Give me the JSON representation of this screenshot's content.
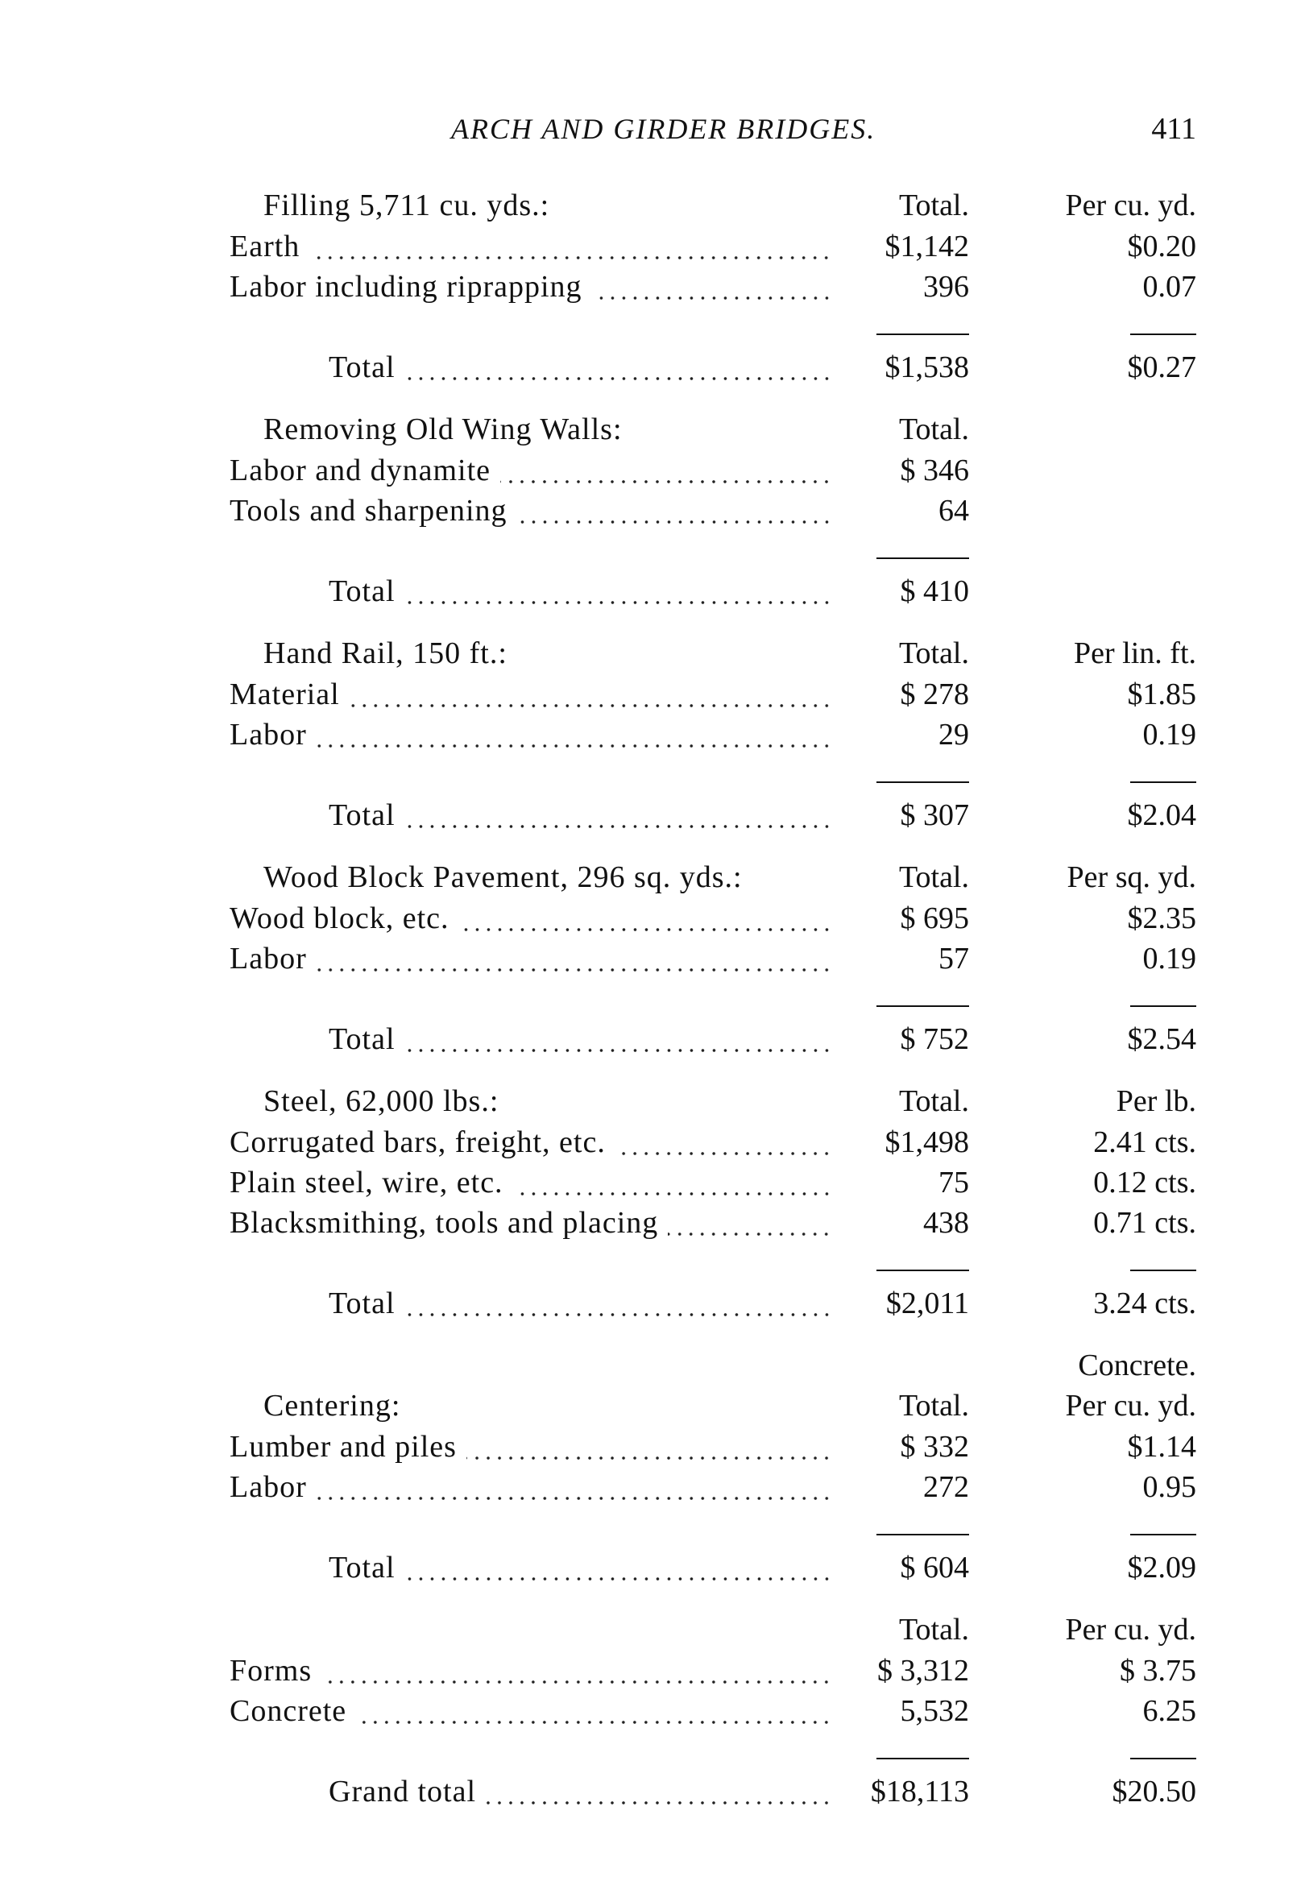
{
  "header": {
    "title": "ARCH AND GIRDER BRIDGES.",
    "page_number": "411"
  },
  "sections": [
    {
      "heading": "Filling 5,711 cu. yds.:",
      "columns": [
        "Total.",
        "Per cu. yd."
      ],
      "rows": [
        [
          "Earth",
          "$1,142",
          "$0.20"
        ],
        [
          "Labor including riprapping",
          "396",
          "0.07"
        ]
      ],
      "total": [
        "Total",
        "$1,538",
        "$0.27"
      ]
    },
    {
      "heading": "Removing Old Wing Walls:",
      "columns": [
        "Total."
      ],
      "rows": [
        [
          "Labor and dynamite",
          "$ 346"
        ],
        [
          "Tools and sharpening",
          "64"
        ]
      ],
      "total": [
        "Total",
        "$ 410"
      ]
    },
    {
      "heading": "Hand Rail, 150 ft.:",
      "columns": [
        "Total.",
        "Per lin. ft."
      ],
      "rows": [
        [
          "Material",
          "$ 278",
          "$1.85"
        ],
        [
          "Labor",
          "29",
          "0.19"
        ]
      ],
      "total": [
        "Total",
        "$ 307",
        "$2.04"
      ]
    },
    {
      "heading": "Wood Block Pavement, 296 sq. yds.:",
      "columns": [
        "Total.",
        "Per sq. yd."
      ],
      "rows": [
        [
          "Wood block, etc.",
          "$ 695",
          "$2.35"
        ],
        [
          "Labor",
          "57",
          "0.19"
        ]
      ],
      "total": [
        "Total",
        "$ 752",
        "$2.54"
      ]
    },
    {
      "heading": "Steel, 62,000 lbs.:",
      "columns": [
        "Total.",
        "Per lb."
      ],
      "rows": [
        [
          "Corrugated bars, freight, etc.",
          "$1,498",
          "2.41 cts."
        ],
        [
          "Plain steel, wire, etc.",
          "75",
          "0.12 cts."
        ],
        [
          "Blacksmithing, tools and placing",
          "438",
          "0.71 cts."
        ]
      ],
      "total": [
        "Total",
        "$2,011",
        "3.24 cts."
      ]
    },
    {
      "note": "Concrete.",
      "heading": "Centering:",
      "columns": [
        "Total.",
        "Per cu. yd."
      ],
      "rows": [
        [
          "Lumber and piles",
          "$ 332",
          "$1.14"
        ],
        [
          "Labor",
          "272",
          "0.95"
        ]
      ],
      "total": [
        "Total",
        "$ 604",
        "$2.09"
      ]
    },
    {
      "columns": [
        "Total.",
        "Per cu. yd."
      ],
      "rows": [
        [
          "Forms",
          "$ 3,312",
          "$ 3.75"
        ],
        [
          "Concrete",
          "5,532",
          "6.25"
        ]
      ],
      "total": [
        "Grand total",
        "$18,113",
        "$20.50"
      ]
    }
  ]
}
